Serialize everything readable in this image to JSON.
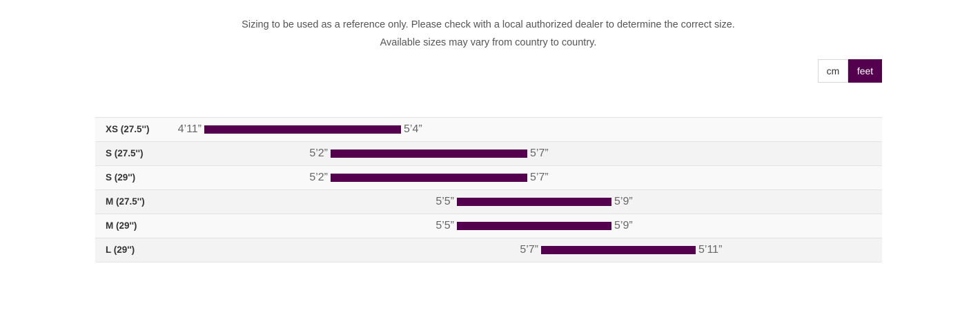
{
  "notice": {
    "line1": "Sizing to be used as a reference only. Please check with a local authorized dealer to determine the correct size.",
    "line2": "Available sizes may vary from country to country."
  },
  "unit_toggle": {
    "options": [
      "cm",
      "feet"
    ],
    "selected": "feet"
  },
  "colors": {
    "accent": "#55004f",
    "row_odd": "#f9f9f9",
    "row_even": "#f3f3f3"
  },
  "sizes": [
    {
      "label": "XS (27.5'')",
      "min_text": "4’11”",
      "max_text": "5’4”",
      "min_in": 59,
      "max_in": 64
    },
    {
      "label": "S (27.5'')",
      "min_text": "5’2”",
      "max_text": "5’7”",
      "min_in": 62,
      "max_in": 67
    },
    {
      "label": "S (29'')",
      "min_text": "5’2”",
      "max_text": "5’7”",
      "min_in": 62,
      "max_in": 67
    },
    {
      "label": "M (27.5'')",
      "min_text": "5’5”",
      "max_text": "5’9”",
      "min_in": 65,
      "max_in": 69
    },
    {
      "label": "M (29'')",
      "min_text": "5’5”",
      "max_text": "5’9”",
      "min_in": 65,
      "max_in": 69
    },
    {
      "label": "L (29'')",
      "min_text": "5’7”",
      "max_text": "5’11”",
      "min_in": 67,
      "max_in": 71
    }
  ]
}
